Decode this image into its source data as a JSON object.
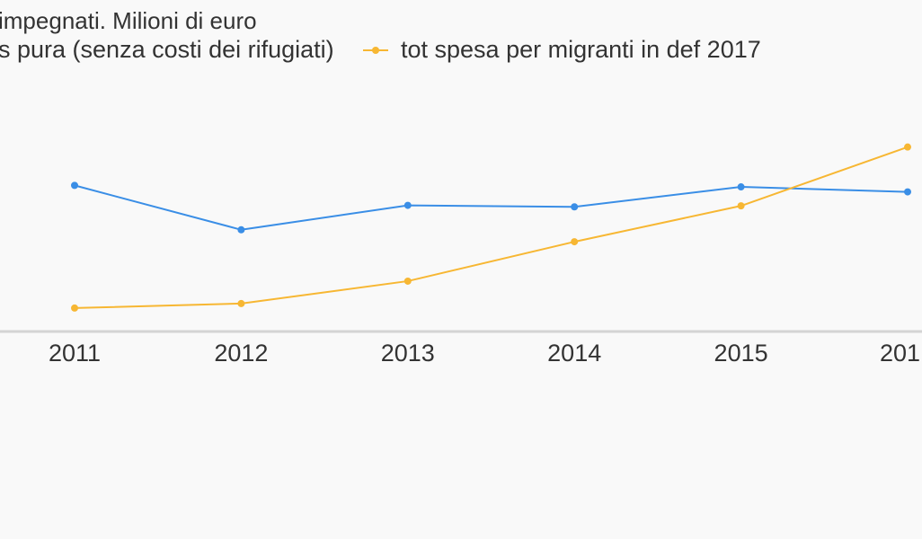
{
  "chart_data": {
    "type": "line",
    "title": "impegnati. Milioni di euro",
    "categories": [
      "2011",
      "2012",
      "2013",
      "2014",
      "2015",
      "201"
    ],
    "series": [
      {
        "name": "s pura (senza costi dei rifugiati)",
        "color": "#3a8ee6",
        "values": [
          2.93,
          2.04,
          2.53,
          2.5,
          2.9,
          2.8
        ]
      },
      {
        "name": "tot spesa per migranti in def 2017",
        "color": "#f7b733",
        "values": [
          0.47,
          0.56,
          1.01,
          1.8,
          2.52,
          3.7
        ]
      }
    ],
    "ylim": [
      0,
      5
    ],
    "grid": false,
    "legend_position": "top"
  }
}
